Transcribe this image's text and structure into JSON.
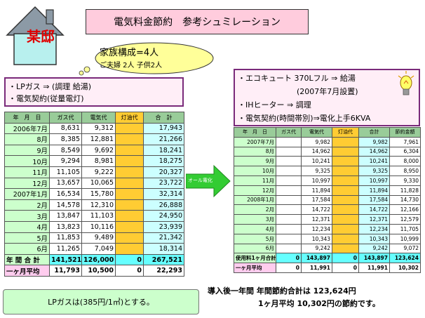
{
  "title": "電気料金節約　参考シュミレーション",
  "house": {
    "label": "某邸"
  },
  "family": {
    "line1": "家族構成=4人",
    "line2": "ご夫婦 2人  子供2人"
  },
  "left_info": [
    "・LPガス  ⇒  (調理 給湯)",
    "・電気契約(従量電灯)"
  ],
  "right_info": [
    "・エコキュート  370Lフル  ⇒  給湯",
    "(2007年7月設置)",
    "・IHヒーター  ⇒  調理",
    "・電気契約(時間帯別)⇒電化上手6KVA"
  ],
  "arrow_label": "オール電化",
  "left_table": {
    "headers": [
      "年　月　日",
      "ガス代",
      "電気代",
      "灯油代",
      "合　計"
    ],
    "rows": [
      [
        "2006年7月",
        "8,631",
        "9,312",
        "",
        "17,943"
      ],
      [
        "8月",
        "8,385",
        "12,881",
        "",
        "21,266"
      ],
      [
        "9月",
        "8,549",
        "9,692",
        "",
        "18,241"
      ],
      [
        "10月",
        "9,294",
        "8,981",
        "",
        "18,275"
      ],
      [
        "11月",
        "11,105",
        "9,222",
        "",
        "20,327"
      ],
      [
        "12月",
        "13,657",
        "10,065",
        "",
        "23,722"
      ],
      [
        "2007年1月",
        "16,534",
        "15,780",
        "",
        "32,314"
      ],
      [
        "2月",
        "14,578",
        "12,310",
        "",
        "26,888"
      ],
      [
        "3月",
        "13,847",
        "11,103",
        "",
        "24,950"
      ],
      [
        "4月",
        "13,823",
        "10,116",
        "",
        "23,939"
      ],
      [
        "5月",
        "11,853",
        "9,489",
        "",
        "21,342"
      ],
      [
        "6月",
        "11,265",
        "7,049",
        "",
        "18,314"
      ]
    ],
    "total": [
      "年 間 合 計",
      "141,521",
      "126,000",
      "0",
      "267,521"
    ],
    "average": [
      "一ヶ月平均",
      "11,793",
      "10,500",
      "0",
      "22,293"
    ]
  },
  "right_table": {
    "headers": [
      "年　月　日",
      "ガス代",
      "電気代",
      "灯油代",
      "合計",
      "節約金額"
    ],
    "rows": [
      [
        "2007年7月",
        "",
        "9,982",
        "",
        "9,982",
        "7,961"
      ],
      [
        "8月",
        "",
        "14,962",
        "",
        "14,962",
        "6,304"
      ],
      [
        "9月",
        "",
        "10,241",
        "",
        "10,241",
        "8,000"
      ],
      [
        "10月",
        "",
        "9,325",
        "",
        "9,325",
        "8,950"
      ],
      [
        "11月",
        "",
        "10,997",
        "",
        "10,997",
        "9,330"
      ],
      [
        "12月",
        "",
        "11,894",
        "",
        "11,894",
        "11,828"
      ],
      [
        "2008年1月",
        "",
        "17,584",
        "",
        "17,584",
        "14,730"
      ],
      [
        "2月",
        "",
        "14,722",
        "",
        "14,722",
        "12,166"
      ],
      [
        "3月",
        "",
        "12,371",
        "",
        "12,371",
        "12,579"
      ],
      [
        "4月",
        "",
        "12,234",
        "",
        "12,234",
        "11,705"
      ],
      [
        "5月",
        "",
        "10,343",
        "",
        "10,343",
        "10,999"
      ],
      [
        "6月",
        "",
        "9,242",
        "",
        "9,242",
        "9,072"
      ]
    ],
    "total": [
      "使用料1ヶ月合計",
      "0",
      "143,897",
      "0",
      "143,897",
      "123,624"
    ],
    "average": [
      "一ヶ月平均",
      "0",
      "11,991",
      "0",
      "11,991",
      "10,302"
    ]
  },
  "lpg_note": "LPガスは(385円/1㎥)とする。",
  "summary": {
    "line1": "導入後一年間  年間節約合計は  123,624円",
    "line2": "1ヶ月平均  10,302円の節約です。"
  }
}
